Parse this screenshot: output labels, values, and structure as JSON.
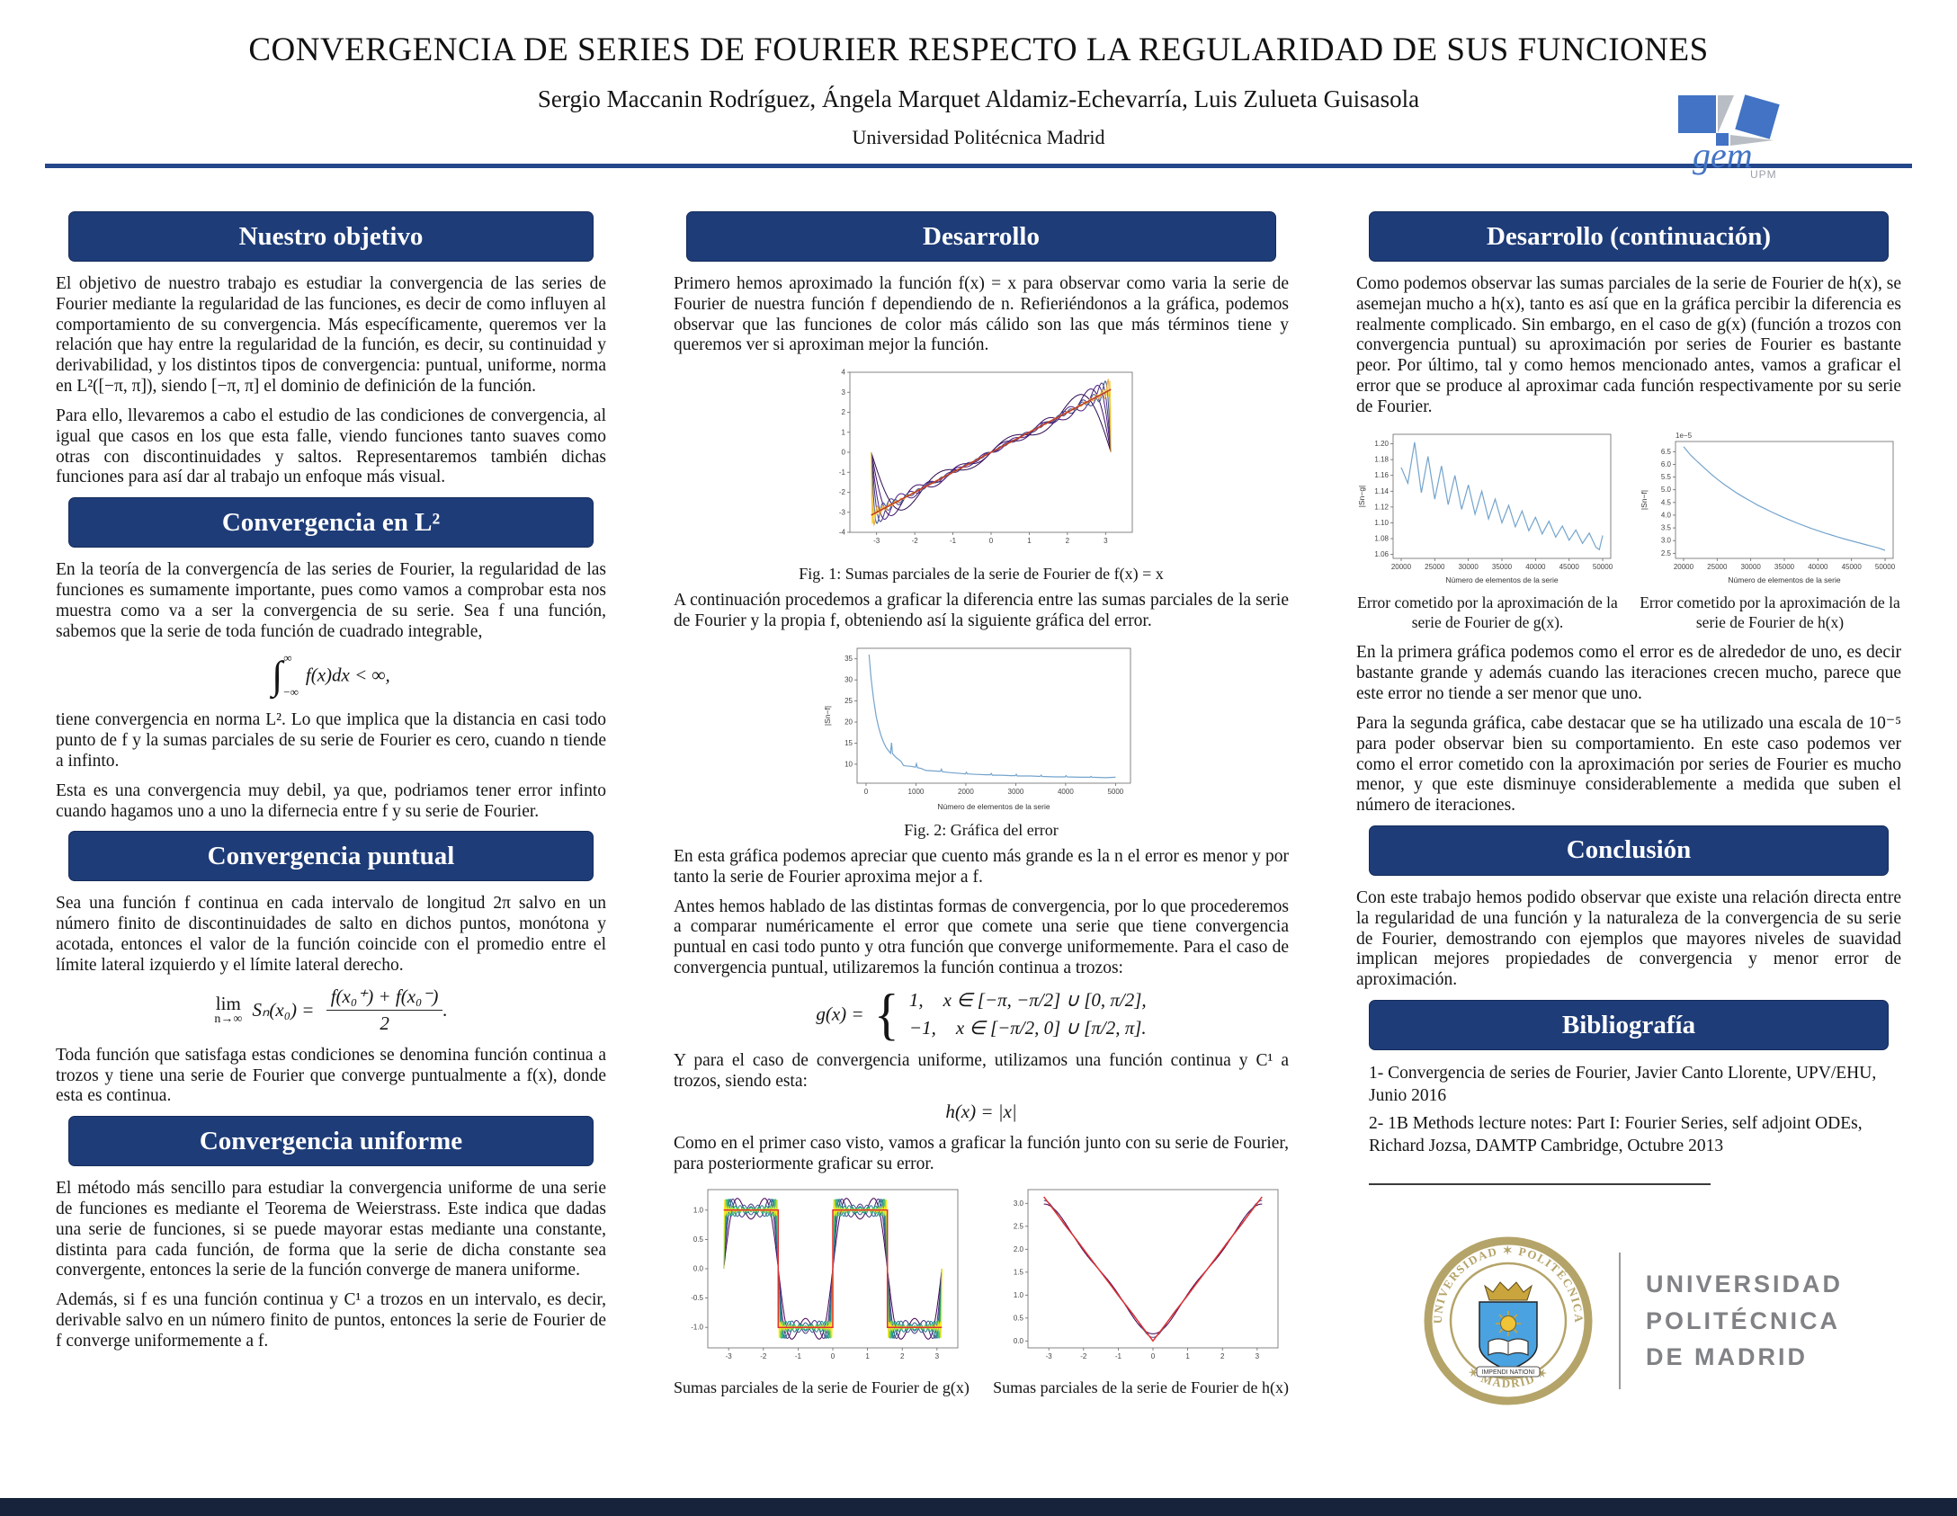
{
  "theme": {
    "accent": "#1e3c78",
    "rule": "#24468a",
    "footer": "#16233b",
    "gold": "#b5a469",
    "logo_blue": "#4273c4",
    "gray_text": "#808285",
    "plot_line_blue": "#74a4cd",
    "plot_limit_red": "#c0392b"
  },
  "header": {
    "title": "CONVERGENCIA DE SERIES DE FOURIER RESPECTO LA REGULARIDAD DE SUS FUNCIONES",
    "authors": "Sergio Maccanin Rodríguez, Ángela Marquet Aldamiz-Echevarría, Luis Zulueta Guisasola",
    "affiliation": "Universidad Politécnica Madrid"
  },
  "gem_logo": {
    "text": "gem",
    "sub": "UPM"
  },
  "sections": {
    "objetivo": {
      "title": "Nuestro objetivo",
      "p1": "El objetivo de nuestro trabajo es estudiar la convergencia de las series de Fourier mediante la regularidad de las funciones, es decir de como influyen al comportamiento de su convergencia. Más específicamente, queremos ver la relación que hay entre la regularidad de la función, es decir, su continuidad y derivabilidad, y los distintos tipos de convergencia: puntual, uniforme, norma en L²([−π, π]), siendo [−π, π] el dominio de definición de la función.",
      "p2": "Para ello, llevaremos a cabo el estudio de las condiciones de convergencia, al igual que casos en los que esta falle, viendo funciones tanto suaves como otras con discontinuidades y saltos. Representaremos también dichas funciones para así dar al trabajo un enfoque más visual."
    },
    "l2": {
      "title": "Convergencia en L²",
      "p1": "En la teoría de la convergencía de las series de Fourier, la regularidad de las funciones es sumamente importante, pues como vamos a comprobar esta nos muestra como va a ser la convergencia de su serie. Sea f una función, sabemos que la serie de toda función de cuadrado integrable,",
      "formula": {
        "integral": "∫",
        "upper": "∞",
        "lower": "−∞",
        "expr": "f(x)dx < ∞,"
      },
      "p2": "tiene convergencia en norma L². Lo que implica que la distancia en casi todo punto de f y la sumas parciales de su serie de Fourier es cero, cuando n tiende a infinto.",
      "p3": "Esta es una convergencia muy debil, ya que, podriamos tener error infinto cuando hagamos uno a uno la difernecia entre f y su serie de Fourier."
    },
    "puntual": {
      "title": "Convergencia puntual",
      "p1": "Sea una función f continua en cada intervalo de longitud 2π salvo en un número finito de discontinuidades de salto en dichos puntos, monótona y acotada, entonces el valor de la función coincide con el promedio entre el límite lateral izquierdo y el límite lateral derecho.",
      "formula": {
        "lim": "lim",
        "under": "n→∞",
        "mid": "Sₙ(x₀) =",
        "num": "f(x₀⁺) + f(x₀⁻)",
        "den": "2",
        "period": "."
      },
      "p2": "Toda función que satisfaga estas condiciones se denomina función continua a trozos y tiene una serie de Fourier que converge puntualmente a f(x), donde esta es continua."
    },
    "uniforme": {
      "title": "Convergencia uniforme",
      "p1": "El método más sencillo para estudiar la convergencia uniforme de una serie de funciones es mediante el Teorema de Weierstrass. Este indica que dadas una serie de funciones, si se puede mayorar estas mediante una constante, distinta para cada función, de forma que la serie de dicha constante sea convergente, entonces la serie de la función converge de manera uniforme.",
      "p2": "Además, si f es una función continua y C¹ a trozos en un intervalo, es decir, derivable salvo en un número finito de puntos, entonces la serie de Fourier de f converge uniformemente a f."
    },
    "desarrollo": {
      "title": "Desarrollo",
      "p1": "Primero hemos aproximado la función f(x) = x para observar como varia la serie de Fourier de nuestra función f dependiendo de n. Refieriéndonos a la gráfica, podemos observar que las funciones de color más cálido son las que más términos tiene y queremos ver si aproximan mejor la función.",
      "fig1_caption": "Fig. 1: Sumas parciales de la serie de Fourier de f(x) = x",
      "p2": "A continuación procedemos a graficar la diferencia entre las sumas parciales de la serie de Fourier y la propia f, obteniendo así la siguiente gráfica del error.",
      "fig2_caption": "Fig. 2: Gráfica del error",
      "p3": "En esta gráfica podemos apreciar que cuento más grande es la n el error es menor y por tanto la serie de Fourier aproxima mejor a f.",
      "p4": "Antes hemos hablado de las distintas formas de convergencia, por lo que procederemos a comparar numéricamente el error que comete una serie que tiene convergencia puntual en casi todo punto y otra función que converge uniformemente. Para el caso de convergencia puntual, utilizaremos la función continua a trozos:",
      "g_formula": {
        "lhs": "g(x) =",
        "case1": "1,",
        "dom1": "x ∈ [−π, −π/2] ∪ [0, π/2],",
        "case2": "−1,",
        "dom2": "x ∈ [−π/2, 0] ∪ [π/2, π]."
      },
      "p5": "Y para el caso de convergencia uniforme, utilizamos una función continua y C¹ a trozos, siendo esta:",
      "h_formula": "h(x) = |x|",
      "p6": "Como en el primer caso visto, vamos a graficar la función junto con su serie de Fourier, para posteriormente graficar su error.",
      "sums_g_caption": "Sumas parciales de la serie de Fourier de g(x)",
      "sums_h_caption": "Sumas parciales de la serie de Fourier de h(x)"
    },
    "continuacion": {
      "title": "Desarrollo (continuación)",
      "p1": "Como podemos observar las sumas parciales de la serie de Fourier de h(x), se asemejan mucho a h(x), tanto es así que en la gráfica percibir la diferencia es realmente complicado. Sin embargo, en el caso de g(x) (función a trozos con convergencia puntual) su aproximación por series de Fourier es bastante peor. Por último, tal y como hemos mencionado antes, vamos a graficar el error que se produce al aproximar cada función respectivamente por su serie de Fourier.",
      "err_g_caption": "Error cometido por la aproximación de la serie de Fourier de g(x).",
      "err_h_caption": "Error cometido por la aproximación de la serie de Fourier de h(x)",
      "p2": "En la primera gráfica podemos como el error es de alrededor de uno, es decir bastante grande y además cuando las iteraciones crecen mucho, parece que este error no tiende a ser menor que uno.",
      "p3": "Para la segunda gráfica, cabe destacar que se ha utilizado una escala de 10⁻⁵ para poder observar bien su comportamiento. En este caso podemos ver como el error cometido con la aproximación por series de Fourier es mucho menor, y que este disminuye considerablemente a medida que suben el número de iteraciones."
    },
    "conclusion": {
      "title": "Conclusión",
      "p1": "Con este trabajo hemos podido observar que existe una relación directa entre la regularidad de una función y la naturaleza de la convergencia de su serie de Fourier, demostrando con ejemplos que mayores niveles de suavidad implican mejores propiedades de convergencia y menor error de aproximación."
    },
    "bibliografia": {
      "title": "Bibliografía",
      "refs": [
        "1- Convergencia de series de Fourier, Javier Canto Llorente, UPV/EHU, Junio 2016",
        "2- 1B Methods lecture notes: Part I: Fourier Series, self adjoint ODEs, Richard Jozsa, DAMTP Cambridge, Octubre 2013"
      ]
    }
  },
  "upm_logo": {
    "seal_top": "UNIVERSIDAD ✶ POLITÉCNICA",
    "seal_bottom": "✶ MADRID ✶",
    "motto": "IMPENDI NATIONI",
    "lines": [
      "UNIVERSIDAD",
      "POLITÉCNICA",
      "DE MADRID"
    ]
  },
  "chart_data": [
    {
      "id": "fig1",
      "type": "line",
      "subtype": "fourier_partial_sums",
      "title": "Sumas parciales de la serie de Fourier de f(x) = x",
      "xlim": [
        -3.7,
        3.7
      ],
      "ylim": [
        -4,
        4
      ],
      "xticks": [
        -3,
        -2,
        -1,
        0,
        1,
        2,
        3
      ],
      "yticks": [
        -4,
        -3,
        -2,
        -1,
        0,
        1,
        2,
        3,
        4
      ],
      "margins": {
        "l": 30,
        "r": 8,
        "t": 8,
        "b": 26
      },
      "fourier": {
        "kind": "x",
        "ns": [
          3,
          5,
          8,
          12,
          20,
          40,
          100
        ],
        "colors": [
          "#2d0b4e",
          "#3d1168",
          "#4c1d84",
          "#45327e",
          "#39568c",
          "#e8a33d",
          "#f4d03f"
        ],
        "limit_color": "#c0392b",
        "limit_label": "f(x)=x"
      }
    },
    {
      "id": "fig2",
      "type": "line",
      "title": "Gráfica del error",
      "xlabel": "Número de elementos de la serie",
      "ylabel": "|Sn−f|",
      "xlim": [
        -180,
        5300
      ],
      "ylim": [
        5.5,
        37.5
      ],
      "xticks": [
        0,
        1000,
        2000,
        3000,
        4000,
        5000
      ],
      "yticks": [
        10,
        15,
        20,
        25,
        30,
        35
      ],
      "margins": {
        "l": 38,
        "r": 10,
        "t": 8,
        "b": 32
      },
      "color": "#74a4cd",
      "points": [
        [
          60,
          36
        ],
        [
          100,
          30.5
        ],
        [
          150,
          25.5
        ],
        [
          200,
          21.5
        ],
        [
          250,
          18.8
        ],
        [
          300,
          16.8
        ],
        [
          350,
          15.2
        ],
        [
          400,
          14.0
        ],
        [
          450,
          13.2
        ],
        [
          490,
          12.6
        ],
        [
          510,
          15.1
        ],
        [
          530,
          12.5
        ],
        [
          600,
          11.6
        ],
        [
          700,
          10.7
        ],
        [
          750,
          9.7
        ],
        [
          800,
          9.6
        ],
        [
          900,
          9.5
        ],
        [
          990,
          9.3
        ],
        [
          1010,
          10.1
        ],
        [
          1030,
          9.2
        ],
        [
          1100,
          9.0
        ],
        [
          1200,
          8.5
        ],
        [
          1350,
          8.4
        ],
        [
          1490,
          8.3
        ],
        [
          1510,
          8.8
        ],
        [
          1530,
          8.2
        ],
        [
          1700,
          8.0
        ],
        [
          1900,
          7.8
        ],
        [
          1990,
          7.7
        ],
        [
          2010,
          8.1
        ],
        [
          2030,
          7.7
        ],
        [
          2200,
          7.6
        ],
        [
          2400,
          7.5
        ],
        [
          2490,
          7.5
        ],
        [
          2510,
          7.8
        ],
        [
          2530,
          7.4
        ],
        [
          2700,
          7.4
        ],
        [
          2900,
          7.3
        ],
        [
          2990,
          7.3
        ],
        [
          3010,
          7.6
        ],
        [
          3030,
          7.2
        ],
        [
          3300,
          7.2
        ],
        [
          3490,
          7.1
        ],
        [
          3510,
          7.4
        ],
        [
          3530,
          7.1
        ],
        [
          3800,
          7.0
        ],
        [
          3990,
          7.0
        ],
        [
          4010,
          7.3
        ],
        [
          4030,
          7.0
        ],
        [
          4300,
          6.9
        ],
        [
          4490,
          6.9
        ],
        [
          4510,
          7.1
        ],
        [
          4530,
          6.9
        ],
        [
          4800,
          6.8
        ],
        [
          5000,
          6.9
        ]
      ]
    },
    {
      "id": "sums-g",
      "type": "line",
      "subtype": "fourier_partial_sums",
      "title": "Sumas parciales de la serie de Fourier de g(x)",
      "xlim": [
        -3.6,
        3.6
      ],
      "ylim": [
        -1.35,
        1.35
      ],
      "xticks": [
        -3,
        -2,
        -1,
        0,
        1,
        2,
        3
      ],
      "yticks": [
        -1,
        -0.5,
        0,
        0.5,
        1
      ],
      "ytick_labels": [
        "-1.0",
        "-0.5",
        "0.0",
        "0.5",
        "1.0"
      ],
      "margins": {
        "l": 34,
        "r": 8,
        "t": 6,
        "b": 24
      },
      "fourier": {
        "kind": "square",
        "ns": [
          2,
          3,
          4,
          5,
          7,
          10,
          16,
          30
        ],
        "colors": [
          "#440154",
          "#46327e",
          "#365c8d",
          "#277f8e",
          "#1fa187",
          "#4ac16d",
          "#a0da39",
          "#fde725"
        ],
        "limit_color": "#e03131",
        "limit_label": "g(x)"
      }
    },
    {
      "id": "sums-h",
      "type": "line",
      "subtype": "fourier_partial_sums",
      "title": "Sumas parciales de la serie de Fourier de h(x)",
      "xlim": [
        -3.6,
        3.6
      ],
      "ylim": [
        -0.15,
        3.3
      ],
      "xticks": [
        -3,
        -2,
        -1,
        0,
        1,
        2,
        3
      ],
      "yticks": [
        0,
        0.5,
        1,
        1.5,
        2,
        2.5,
        3
      ],
      "ytick_labels": [
        "0.0",
        "0.5",
        "1.0",
        "1.5",
        "2.0",
        "2.5",
        "3.0"
      ],
      "margins": {
        "l": 34,
        "r": 8,
        "t": 6,
        "b": 24
      },
      "fourier": {
        "kind": "abs",
        "ns": [
          2,
          4
        ],
        "colors": [
          "#440154",
          "#3b528b"
        ],
        "limit_color": "#e03131",
        "limit_label": "h(x)=|x|"
      }
    },
    {
      "id": "err-g",
      "type": "line",
      "title": "Error cometido por la aproximación de la serie de Fourier de g(x)",
      "xlabel": "Número de elementos de la serie",
      "ylabel": "|Sn−g|",
      "xlim": [
        18800,
        51200
      ],
      "ylim": [
        1.055,
        1.212
      ],
      "xticks": [
        20000,
        25000,
        30000,
        35000,
        40000,
        45000,
        50000
      ],
      "yticks": [
        1.06,
        1.08,
        1.1,
        1.12,
        1.14,
        1.16,
        1.18,
        1.2
      ],
      "ytick_labels": [
        "1.06",
        "1.08",
        "1.10",
        "1.12",
        "1.14",
        "1.16",
        "1.18",
        "1.20"
      ],
      "margins": {
        "l": 40,
        "r": 8,
        "t": 8,
        "b": 30
      },
      "color": "#74a4cd",
      "points": [
        [
          20000,
          1.17
        ],
        [
          21000,
          1.15
        ],
        [
          22000,
          1.202
        ],
        [
          23000,
          1.138
        ],
        [
          24000,
          1.184
        ],
        [
          25000,
          1.13
        ],
        [
          26000,
          1.172
        ],
        [
          27000,
          1.123
        ],
        [
          28000,
          1.16
        ],
        [
          29000,
          1.117
        ],
        [
          30000,
          1.148
        ],
        [
          31000,
          1.111
        ],
        [
          32000,
          1.14
        ],
        [
          33000,
          1.105
        ],
        [
          34000,
          1.13
        ],
        [
          35000,
          1.1
        ],
        [
          36000,
          1.122
        ],
        [
          37000,
          1.095
        ],
        [
          38000,
          1.115
        ],
        [
          39000,
          1.09
        ],
        [
          40000,
          1.107
        ],
        [
          41000,
          1.086
        ],
        [
          42000,
          1.102
        ],
        [
          43000,
          1.082
        ],
        [
          44000,
          1.096
        ],
        [
          45000,
          1.078
        ],
        [
          46000,
          1.091
        ],
        [
          47000,
          1.074
        ],
        [
          48000,
          1.087
        ],
        [
          49000,
          1.069
        ],
        [
          49500,
          1.066
        ],
        [
          50000,
          1.084
        ]
      ]
    },
    {
      "id": "err-h",
      "type": "line",
      "title": "Error cometido por la aproximación de la serie de Fourier de h(x)",
      "xlabel": "Número de elementos de la serie",
      "ylabel": "|Sn−f|",
      "offset_label": "1e−5",
      "xlim": [
        18800,
        51200
      ],
      "ylim": [
        2.3,
        6.9
      ],
      "xticks": [
        20000,
        25000,
        30000,
        35000,
        40000,
        45000,
        50000
      ],
      "yticks": [
        2.5,
        3,
        3.5,
        4,
        4.5,
        5,
        5.5,
        6,
        6.5
      ],
      "ytick_labels": [
        "2.5",
        "3.0",
        "3.5",
        "4.0",
        "4.5",
        "5.0",
        "5.5",
        "6.0",
        "6.5"
      ],
      "margins": {
        "l": 40,
        "r": 8,
        "t": 16,
        "b": 30
      },
      "color": "#74a4cd",
      "points": [
        [
          20000,
          6.7
        ],
        [
          21000,
          6.38
        ],
        [
          22000,
          6.12
        ],
        [
          23000,
          5.88
        ],
        [
          24000,
          5.64
        ],
        [
          25000,
          5.42
        ],
        [
          26000,
          5.22
        ],
        [
          27000,
          5.04
        ],
        [
          28000,
          4.86
        ],
        [
          29000,
          4.7
        ],
        [
          30000,
          4.55
        ],
        [
          31000,
          4.4
        ],
        [
          32000,
          4.27
        ],
        [
          33000,
          4.14
        ],
        [
          34000,
          4.02
        ],
        [
          35000,
          3.9
        ],
        [
          36000,
          3.79
        ],
        [
          37000,
          3.68
        ],
        [
          38000,
          3.58
        ],
        [
          39000,
          3.48
        ],
        [
          40000,
          3.39
        ],
        [
          41000,
          3.3
        ],
        [
          42000,
          3.22
        ],
        [
          43000,
          3.14
        ],
        [
          44000,
          3.06
        ],
        [
          45000,
          2.99
        ],
        [
          46000,
          2.92
        ],
        [
          47000,
          2.85
        ],
        [
          48000,
          2.78
        ],
        [
          49000,
          2.71
        ],
        [
          50000,
          2.62
        ]
      ]
    }
  ]
}
